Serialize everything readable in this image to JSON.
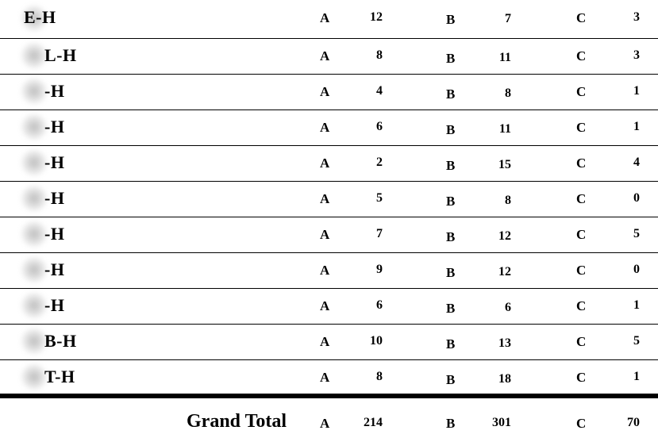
{
  "rows": [
    {
      "name": "E-H",
      "a_label": "A",
      "a": "12",
      "b_label": "B",
      "b": "7",
      "c_label": "C",
      "c": "3"
    },
    {
      "name": "L-H",
      "a_label": "A",
      "a": "8",
      "b_label": "B",
      "b": "11",
      "c_label": "C",
      "c": "3"
    },
    {
      "name": "-H",
      "a_label": "A",
      "a": "4",
      "b_label": "B",
      "b": "8",
      "c_label": "C",
      "c": "1"
    },
    {
      "name": "-H",
      "a_label": "A",
      "a": "6",
      "b_label": "B",
      "b": "11",
      "c_label": "C",
      "c": "1"
    },
    {
      "name": "-H",
      "a_label": "A",
      "a": "2",
      "b_label": "B",
      "b": "15",
      "c_label": "C",
      "c": "4"
    },
    {
      "name": "-H",
      "a_label": "A",
      "a": "5",
      "b_label": "B",
      "b": "8",
      "c_label": "C",
      "c": "0"
    },
    {
      "name": "-H",
      "a_label": "A",
      "a": "7",
      "b_label": "B",
      "b": "12",
      "c_label": "C",
      "c": "5"
    },
    {
      "name": "-H",
      "a_label": "A",
      "a": "9",
      "b_label": "B",
      "b": "12",
      "c_label": "C",
      "c": "0"
    },
    {
      "name": "-H",
      "a_label": "A",
      "a": "6",
      "b_label": "B",
      "b": "6",
      "c_label": "C",
      "c": "1"
    },
    {
      "name": "B-H",
      "a_label": "A",
      "a": "10",
      "b_label": "B",
      "b": "13",
      "c_label": "C",
      "c": "5"
    },
    {
      "name": "T-H",
      "a_label": "A",
      "a": "8",
      "b_label": "B",
      "b": "18",
      "c_label": "C",
      "c": "1"
    }
  ],
  "grand_total": {
    "label": "Grand Total",
    "a_label": "A",
    "a": "214",
    "b_label": "B",
    "b": "301",
    "c_label": "C",
    "c": "70"
  }
}
